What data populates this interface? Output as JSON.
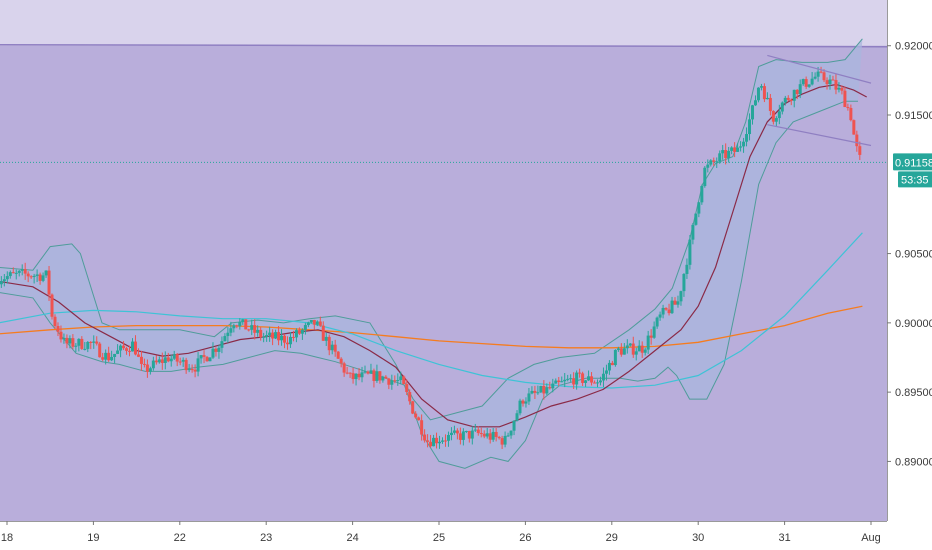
{
  "colors": {
    "background": "#b9aedb",
    "upper_zone": "#d9d3ec",
    "zone_line": "#8f7fc2",
    "bull": "#26a69a",
    "bear": "#ef5350",
    "bb_band": "#4f9c9a",
    "bb_fill": "#a9b6de",
    "bb_mid": "#8a2a47",
    "ma_fast": "#3ec3d6",
    "ma_slow": "#f57c1f",
    "channel": "#8f7fc2",
    "price_line": "#26a69a",
    "price_tag": "#26a69a",
    "axis_bg": "#ffffff",
    "axis_text": "#3a3a3a"
  },
  "price_tag": {
    "price": "0.91158",
    "countdown": "53:35"
  },
  "chart_data": {
    "type": "line",
    "title": "",
    "xlabel": "",
    "ylabel": "",
    "x_tick_labels": [
      "18",
      "19",
      "22",
      "23",
      "24",
      "25",
      "26",
      "29",
      "30",
      "31",
      "Aug"
    ],
    "y_tick_labels": [
      "0.92000",
      "0.91500",
      "0.90500",
      "0.90000",
      "0.89500",
      "0.89000"
    ],
    "y_ticks": [
      0.92,
      0.915,
      0.905,
      0.9,
      0.895,
      0.89
    ],
    "ylim": [
      0.8857,
      0.9233
    ],
    "xlim": [
      0,
      10
    ],
    "x_ticks": [
      0,
      1,
      2,
      3,
      4,
      5,
      6,
      7,
      8,
      9,
      10
    ],
    "resistance_zone": [
      0.92,
      0.9233
    ],
    "last_price": 0.91158,
    "channel_lines": [
      {
        "from": [
          8.8,
          0.9193
        ],
        "to": [
          10.0,
          0.9173
        ]
      },
      {
        "from": [
          8.8,
          0.9143
        ],
        "to": [
          10.0,
          0.9128
        ]
      }
    ],
    "candles_path": [
      [
        -0.1,
        0.9032
      ],
      [
        0.2,
        0.9035
      ],
      [
        0.5,
        0.9034
      ],
      [
        0.55,
        0.9005
      ],
      [
        0.7,
        0.8985
      ],
      [
        1.0,
        0.8985
      ],
      [
        1.2,
        0.8975
      ],
      [
        1.5,
        0.8985
      ],
      [
        1.6,
        0.8965
      ],
      [
        1.9,
        0.8975
      ],
      [
        2.2,
        0.8968
      ],
      [
        2.5,
        0.8985
      ],
      [
        2.65,
        0.9002
      ],
      [
        3.0,
        0.899
      ],
      [
        3.3,
        0.8988
      ],
      [
        3.6,
        0.9
      ],
      [
        3.75,
        0.8985
      ],
      [
        4.0,
        0.896
      ],
      [
        4.3,
        0.8962
      ],
      [
        4.6,
        0.8957
      ],
      [
        4.75,
        0.8935
      ],
      [
        4.9,
        0.8915
      ],
      [
        5.2,
        0.8918
      ],
      [
        5.5,
        0.892
      ],
      [
        5.8,
        0.8915
      ],
      [
        6.0,
        0.8945
      ],
      [
        6.3,
        0.8952
      ],
      [
        6.6,
        0.896
      ],
      [
        6.9,
        0.8958
      ],
      [
        7.1,
        0.898
      ],
      [
        7.4,
        0.8982
      ],
      [
        7.6,
        0.9005
      ],
      [
        7.8,
        0.9015
      ],
      [
        7.95,
        0.906
      ],
      [
        8.1,
        0.911
      ],
      [
        8.3,
        0.912
      ],
      [
        8.5,
        0.9125
      ],
      [
        8.65,
        0.915
      ],
      [
        8.75,
        0.9175
      ],
      [
        8.9,
        0.9148
      ],
      [
        9.0,
        0.9158
      ],
      [
        9.2,
        0.917
      ],
      [
        9.4,
        0.9178
      ],
      [
        9.55,
        0.9175
      ],
      [
        9.7,
        0.9165
      ],
      [
        9.8,
        0.915
      ],
      [
        9.85,
        0.913
      ],
      [
        9.9,
        0.9118
      ]
    ],
    "series": [
      {
        "name": "",
        "kind": "bb_upper",
        "x": [
          -0.1,
          0.3,
          0.5,
          0.75,
          0.85,
          1.1,
          1.3,
          1.6,
          2.0,
          2.4,
          2.6,
          2.9,
          3.2,
          3.5,
          3.8,
          4.2,
          4.5,
          4.7,
          4.9,
          5.2,
          5.5,
          5.8,
          6.1,
          6.4,
          6.8,
          7.2,
          7.5,
          7.7,
          7.9,
          8.05,
          8.2,
          8.4,
          8.55,
          8.7,
          8.9,
          9.2,
          9.5,
          9.7,
          9.9
        ],
        "y": [
          0.904,
          0.9038,
          0.9055,
          0.9057,
          0.905,
          0.9,
          0.8995,
          0.8995,
          0.8995,
          0.899,
          0.9,
          0.9002,
          0.9,
          0.9003,
          0.9005,
          0.9,
          0.897,
          0.8945,
          0.893,
          0.8935,
          0.894,
          0.896,
          0.897,
          0.8975,
          0.8978,
          0.8995,
          0.901,
          0.9025,
          0.906,
          0.91,
          0.9115,
          0.912,
          0.9145,
          0.9185,
          0.919,
          0.9188,
          0.9188,
          0.919,
          0.9205
        ]
      },
      {
        "name": "",
        "kind": "bb_lower",
        "x": [
          -0.1,
          0.3,
          0.5,
          0.8,
          1.1,
          1.3,
          1.6,
          1.9,
          2.2,
          2.5,
          2.8,
          3.1,
          3.4,
          3.6,
          3.8,
          4.0,
          4.3,
          4.6,
          4.8,
          5.0,
          5.3,
          5.6,
          5.8,
          6.0,
          6.2,
          6.4,
          6.7,
          6.9,
          7.1,
          7.3,
          7.5,
          7.65,
          7.75,
          7.9,
          8.1,
          8.3,
          8.5,
          8.7,
          8.9,
          9.1,
          9.3,
          9.5,
          9.7,
          9.85
        ],
        "y": [
          0.9022,
          0.9018,
          0.9,
          0.8978,
          0.8972,
          0.897,
          0.8965,
          0.8965,
          0.8968,
          0.897,
          0.8975,
          0.898,
          0.8978,
          0.8975,
          0.8972,
          0.8968,
          0.8962,
          0.8955,
          0.892,
          0.89,
          0.8895,
          0.8903,
          0.89,
          0.8915,
          0.8945,
          0.8955,
          0.896,
          0.896,
          0.896,
          0.8958,
          0.896,
          0.8968,
          0.8962,
          0.8945,
          0.8945,
          0.897,
          0.903,
          0.91,
          0.913,
          0.9145,
          0.915,
          0.9155,
          0.916,
          0.916
        ]
      },
      {
        "name": "",
        "kind": "bb_middle",
        "x": [
          -0.1,
          0.3,
          0.6,
          0.9,
          1.2,
          1.5,
          1.8,
          2.1,
          2.4,
          2.7,
          3.0,
          3.3,
          3.6,
          3.9,
          4.2,
          4.5,
          4.8,
          5.1,
          5.4,
          5.7,
          6.0,
          6.3,
          6.6,
          6.9,
          7.2,
          7.5,
          7.8,
          8.0,
          8.2,
          8.4,
          8.6,
          8.8,
          9.0,
          9.2,
          9.4,
          9.6,
          9.8,
          9.95
        ],
        "y": [
          0.903,
          0.9026,
          0.9015,
          0.9,
          0.899,
          0.898,
          0.8976,
          0.8978,
          0.8983,
          0.8988,
          0.899,
          0.8993,
          0.8995,
          0.899,
          0.898,
          0.8968,
          0.8945,
          0.893,
          0.8925,
          0.8925,
          0.8932,
          0.894,
          0.8945,
          0.8952,
          0.8965,
          0.898,
          0.8995,
          0.9012,
          0.904,
          0.908,
          0.912,
          0.9145,
          0.9158,
          0.9165,
          0.917,
          0.9172,
          0.9168,
          0.9163
        ]
      },
      {
        "name": "",
        "kind": "ma_fast",
        "x": [
          -0.1,
          0.5,
          1.0,
          1.5,
          2.0,
          2.5,
          3.0,
          3.5,
          4.0,
          4.5,
          5.0,
          5.5,
          6.0,
          6.5,
          7.0,
          7.5,
          8.0,
          8.5,
          9.0,
          9.5,
          9.9
        ],
        "y": [
          0.9,
          0.9007,
          0.9009,
          0.9008,
          0.9005,
          0.9003,
          0.9003,
          0.9,
          0.8992,
          0.898,
          0.897,
          0.8962,
          0.8957,
          0.8954,
          0.8953,
          0.8955,
          0.8962,
          0.898,
          0.9005,
          0.9038,
          0.9065
        ]
      },
      {
        "name": "",
        "kind": "ma_slow",
        "x": [
          -0.1,
          0.5,
          1.0,
          1.5,
          2.0,
          2.5,
          3.0,
          3.5,
          4.0,
          4.5,
          5.0,
          5.5,
          6.0,
          6.5,
          7.0,
          7.5,
          8.0,
          8.5,
          9.0,
          9.5,
          9.9
        ],
        "y": [
          0.8992,
          0.8995,
          0.8997,
          0.8998,
          0.8998,
          0.8998,
          0.8997,
          0.8995,
          0.8993,
          0.899,
          0.8987,
          0.8985,
          0.8983,
          0.8982,
          0.8982,
          0.8983,
          0.8986,
          0.8992,
          0.8998,
          0.9007,
          0.9012
        ]
      }
    ]
  }
}
